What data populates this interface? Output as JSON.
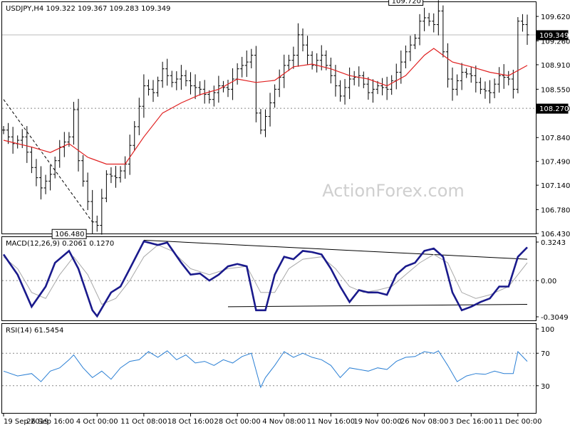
{
  "chart_data": [
    {
      "type": "ohlc",
      "title": "USDJPY,H4  109.322 109.367 109.283 109.349",
      "watermark": "ActionForex.com",
      "ylim": [
        106.43,
        109.83
      ],
      "y_ticks": [
        109.62,
        109.26,
        108.91,
        108.55,
        108.27,
        107.84,
        107.49,
        107.14,
        106.78,
        106.43
      ],
      "y_tick_labels": [
        "109.620",
        "109.260",
        "108.910",
        "108.550",
        "108.270",
        "107.840",
        "107.490",
        "107.140",
        "106.780",
        "106.430"
      ],
      "current_price": {
        "value": 109.349,
        "label": "109.349"
      },
      "support_level": {
        "value": 108.27,
        "label": "108.270"
      },
      "annotations": [
        {
          "label": "109.720",
          "x": 90,
          "value": 109.72
        },
        {
          "label": "106.480",
          "x": 18,
          "value": 106.48
        }
      ],
      "series": [
        {
          "kind": "price",
          "color": "#000000",
          "points": [
            [
              0,
              107.95
            ],
            [
              2,
              107.75
            ],
            [
              4,
              107.85
            ],
            [
              6,
              107.4
            ],
            [
              8,
              107.1
            ],
            [
              10,
              107.3
            ],
            [
              12,
              107.7
            ],
            [
              14,
              107.85
            ],
            [
              15,
              108.25
            ],
            [
              16,
              107.5
            ],
            [
              17,
              107.2
            ],
            [
              18,
              106.9
            ],
            [
              19,
              106.6
            ],
            [
              20,
              106.55
            ],
            [
              21,
              106.95
            ],
            [
              22,
              107.3
            ],
            [
              24,
              107.25
            ],
            [
              26,
              107.45
            ],
            [
              28,
              108.0
            ],
            [
              30,
              108.6
            ],
            [
              32,
              108.5
            ],
            [
              34,
              108.85
            ],
            [
              36,
              108.65
            ],
            [
              38,
              108.75
            ],
            [
              40,
              108.6
            ],
            [
              42,
              108.55
            ],
            [
              44,
              108.4
            ],
            [
              46,
              108.6
            ],
            [
              48,
              108.55
            ],
            [
              50,
              108.85
            ],
            [
              52,
              108.95
            ],
            [
              53,
              109.05
            ],
            [
              54,
              108.2
            ],
            [
              55,
              107.95
            ],
            [
              56,
              108.15
            ],
            [
              58,
              108.55
            ],
            [
              60,
              108.9
            ],
            [
              62,
              109.05
            ],
            [
              63,
              109.35
            ],
            [
              64,
              109.2
            ],
            [
              66,
              108.9
            ],
            [
              68,
              109.05
            ],
            [
              70,
              108.75
            ],
            [
              72,
              108.45
            ],
            [
              74,
              108.7
            ],
            [
              76,
              108.75
            ],
            [
              78,
              108.5
            ],
            [
              80,
              108.6
            ],
            [
              82,
              108.55
            ],
            [
              84,
              108.8
            ],
            [
              86,
              109.1
            ],
            [
              88,
              109.3
            ],
            [
              89,
              109.55
            ],
            [
              90,
              109.6
            ],
            [
              92,
              109.5
            ],
            [
              93,
              109.7
            ],
            [
              94,
              109.1
            ],
            [
              95,
              108.7
            ],
            [
              96,
              108.55
            ],
            [
              98,
              108.8
            ],
            [
              100,
              108.75
            ],
            [
              102,
              108.55
            ],
            [
              104,
              108.5
            ],
            [
              106,
              108.75
            ],
            [
              108,
              108.7
            ],
            [
              109,
              108.55
            ],
            [
              110,
              109.55
            ],
            [
              111,
              109.5
            ],
            [
              112,
              109.35
            ]
          ]
        },
        {
          "kind": "moving-average",
          "color": "#e02020",
          "points": [
            [
              0,
              107.8
            ],
            [
              6,
              107.7
            ],
            [
              10,
              107.62
            ],
            [
              14,
              107.75
            ],
            [
              18,
              107.55
            ],
            [
              22,
              107.45
            ],
            [
              26,
              107.45
            ],
            [
              30,
              107.85
            ],
            [
              34,
              108.2
            ],
            [
              38,
              108.35
            ],
            [
              42,
              108.47
            ],
            [
              46,
              108.55
            ],
            [
              50,
              108.7
            ],
            [
              54,
              108.65
            ],
            [
              58,
              108.68
            ],
            [
              62,
              108.88
            ],
            [
              66,
              108.92
            ],
            [
              70,
              108.85
            ],
            [
              74,
              108.75
            ],
            [
              78,
              108.7
            ],
            [
              82,
              108.6
            ],
            [
              86,
              108.75
            ],
            [
              88,
              108.9
            ],
            [
              90,
              109.05
            ],
            [
              92,
              109.15
            ],
            [
              94,
              109.05
            ],
            [
              96,
              108.95
            ],
            [
              100,
              108.88
            ],
            [
              104,
              108.8
            ],
            [
              108,
              108.75
            ],
            [
              112,
              108.9
            ]
          ]
        }
      ],
      "trendlines": [
        {
          "style": "dashed",
          "from": [
            0,
            108.4
          ],
          "to": [
            19,
            106.6
          ]
        }
      ]
    },
    {
      "type": "line",
      "title": "MACD(12,26,9) 0.2061 0.1270",
      "ylim": [
        -0.3049,
        0.3243
      ],
      "y_ticks": [
        0.3243,
        0.0,
        -0.3049
      ],
      "y_tick_labels": [
        "0.3243",
        "0.00",
        "-0.3049"
      ],
      "series": [
        {
          "kind": "macd",
          "color": "#1a1a8c",
          "values": [
            [
              0,
              0.22
            ],
            [
              3,
              0.05
            ],
            [
              6,
              -0.22
            ],
            [
              9,
              -0.05
            ],
            [
              11,
              0.15
            ],
            [
              14,
              0.25
            ],
            [
              16,
              0.1
            ],
            [
              19,
              -0.25
            ],
            [
              20,
              -0.3
            ],
            [
              23,
              -0.1
            ],
            [
              25,
              -0.05
            ],
            [
              27,
              0.1
            ],
            [
              30,
              0.33
            ],
            [
              33,
              0.3
            ],
            [
              35,
              0.32
            ],
            [
              38,
              0.15
            ],
            [
              40,
              0.05
            ],
            [
              42,
              0.06
            ],
            [
              44,
              0.0
            ],
            [
              46,
              0.05
            ],
            [
              48,
              0.12
            ],
            [
              50,
              0.14
            ],
            [
              52,
              0.12
            ],
            [
              54,
              -0.25
            ],
            [
              56,
              -0.25
            ],
            [
              58,
              0.05
            ],
            [
              60,
              0.2
            ],
            [
              62,
              0.18
            ],
            [
              64,
              0.25
            ],
            [
              66,
              0.24
            ],
            [
              68,
              0.22
            ],
            [
              70,
              0.1
            ],
            [
              72,
              -0.05
            ],
            [
              74,
              -0.18
            ],
            [
              76,
              -0.08
            ],
            [
              78,
              -0.1
            ],
            [
              80,
              -0.1
            ],
            [
              82,
              -0.12
            ],
            [
              84,
              0.05
            ],
            [
              86,
              0.12
            ],
            [
              88,
              0.15
            ],
            [
              90,
              0.25
            ],
            [
              92,
              0.27
            ],
            [
              94,
              0.2
            ],
            [
              96,
              -0.1
            ],
            [
              98,
              -0.25
            ],
            [
              100,
              -0.22
            ],
            [
              102,
              -0.18
            ],
            [
              104,
              -0.15
            ],
            [
              106,
              -0.05
            ],
            [
              108,
              -0.05
            ],
            [
              110,
              0.2
            ],
            [
              112,
              0.28
            ]
          ]
        },
        {
          "kind": "signal",
          "color": "#a8a8a8",
          "values": [
            [
              0,
              0.2
            ],
            [
              3,
              0.1
            ],
            [
              6,
              -0.1
            ],
            [
              9,
              -0.15
            ],
            [
              12,
              0.05
            ],
            [
              15,
              0.2
            ],
            [
              18,
              0.05
            ],
            [
              21,
              -0.2
            ],
            [
              24,
              -0.15
            ],
            [
              27,
              0.0
            ],
            [
              30,
              0.2
            ],
            [
              33,
              0.3
            ],
            [
              36,
              0.25
            ],
            [
              40,
              0.1
            ],
            [
              44,
              0.05
            ],
            [
              48,
              0.1
            ],
            [
              52,
              0.12
            ],
            [
              55,
              -0.1
            ],
            [
              58,
              -0.1
            ],
            [
              61,
              0.1
            ],
            [
              64,
              0.18
            ],
            [
              68,
              0.2
            ],
            [
              71,
              0.1
            ],
            [
              74,
              -0.05
            ],
            [
              77,
              -0.1
            ],
            [
              80,
              -0.08
            ],
            [
              83,
              -0.05
            ],
            [
              86,
              0.05
            ],
            [
              89,
              0.15
            ],
            [
              92,
              0.22
            ],
            [
              95,
              0.15
            ],
            [
              98,
              -0.1
            ],
            [
              101,
              -0.15
            ],
            [
              104,
              -0.12
            ],
            [
              108,
              -0.05
            ],
            [
              112,
              0.15
            ]
          ]
        }
      ],
      "trendlines": [
        {
          "style": "solid",
          "from": [
            30,
            0.34
          ],
          "to": [
            112,
            0.18
          ]
        },
        {
          "style": "solid",
          "from": [
            48,
            -0.22
          ],
          "to": [
            112,
            -0.2
          ]
        }
      ]
    },
    {
      "type": "line",
      "title": "RSI(14) 61.5454",
      "ylim": [
        0,
        100
      ],
      "y_ticks": [
        100,
        70,
        30
      ],
      "y_tick_labels": [
        "100",
        "70",
        "30"
      ],
      "series": [
        {
          "kind": "rsi",
          "color": "#2a7fd4",
          "values": [
            [
              0,
              48
            ],
            [
              3,
              42
            ],
            [
              6,
              45
            ],
            [
              8,
              35
            ],
            [
              10,
              48
            ],
            [
              12,
              52
            ],
            [
              14,
              62
            ],
            [
              15,
              68
            ],
            [
              17,
              52
            ],
            [
              19,
              40
            ],
            [
              21,
              48
            ],
            [
              23,
              38
            ],
            [
              25,
              52
            ],
            [
              27,
              60
            ],
            [
              29,
              62
            ],
            [
              31,
              72
            ],
            [
              33,
              65
            ],
            [
              35,
              73
            ],
            [
              37,
              62
            ],
            [
              39,
              68
            ],
            [
              41,
              58
            ],
            [
              43,
              60
            ],
            [
              45,
              55
            ],
            [
              47,
              62
            ],
            [
              49,
              58
            ],
            [
              51,
              66
            ],
            [
              53,
              70
            ],
            [
              55,
              28
            ],
            [
              56,
              40
            ],
            [
              58,
              55
            ],
            [
              60,
              72
            ],
            [
              62,
              65
            ],
            [
              64,
              70
            ],
            [
              66,
              65
            ],
            [
              68,
              62
            ],
            [
              70,
              55
            ],
            [
              72,
              40
            ],
            [
              74,
              52
            ],
            [
              76,
              50
            ],
            [
              78,
              48
            ],
            [
              80,
              52
            ],
            [
              82,
              50
            ],
            [
              84,
              60
            ],
            [
              86,
              65
            ],
            [
              88,
              66
            ],
            [
              90,
              72
            ],
            [
              92,
              70
            ],
            [
              93,
              73
            ],
            [
              95,
              55
            ],
            [
              97,
              35
            ],
            [
              99,
              42
            ],
            [
              101,
              45
            ],
            [
              103,
              44
            ],
            [
              105,
              48
            ],
            [
              107,
              45
            ],
            [
              109,
              45
            ],
            [
              110,
              72
            ],
            [
              112,
              60
            ]
          ]
        }
      ]
    }
  ],
  "x_axis": {
    "tick_labels": [
      "19 Sep 2019",
      "26 Sep 16:00",
      "4 Oct 00:00",
      "11 Oct 08:00",
      "18 Oct 16:00",
      "28 Oct 00:00",
      "4 Nov 08:00",
      "11 Nov 16:00",
      "19 Nov 00:00",
      "26 Nov 08:00",
      "3 Dec 16:00",
      "11 Dec 00:00"
    ],
    "tick_index": [
      0,
      10,
      20,
      30,
      40,
      50,
      60,
      70,
      80,
      90,
      100,
      110
    ],
    "bar_count": 113
  }
}
